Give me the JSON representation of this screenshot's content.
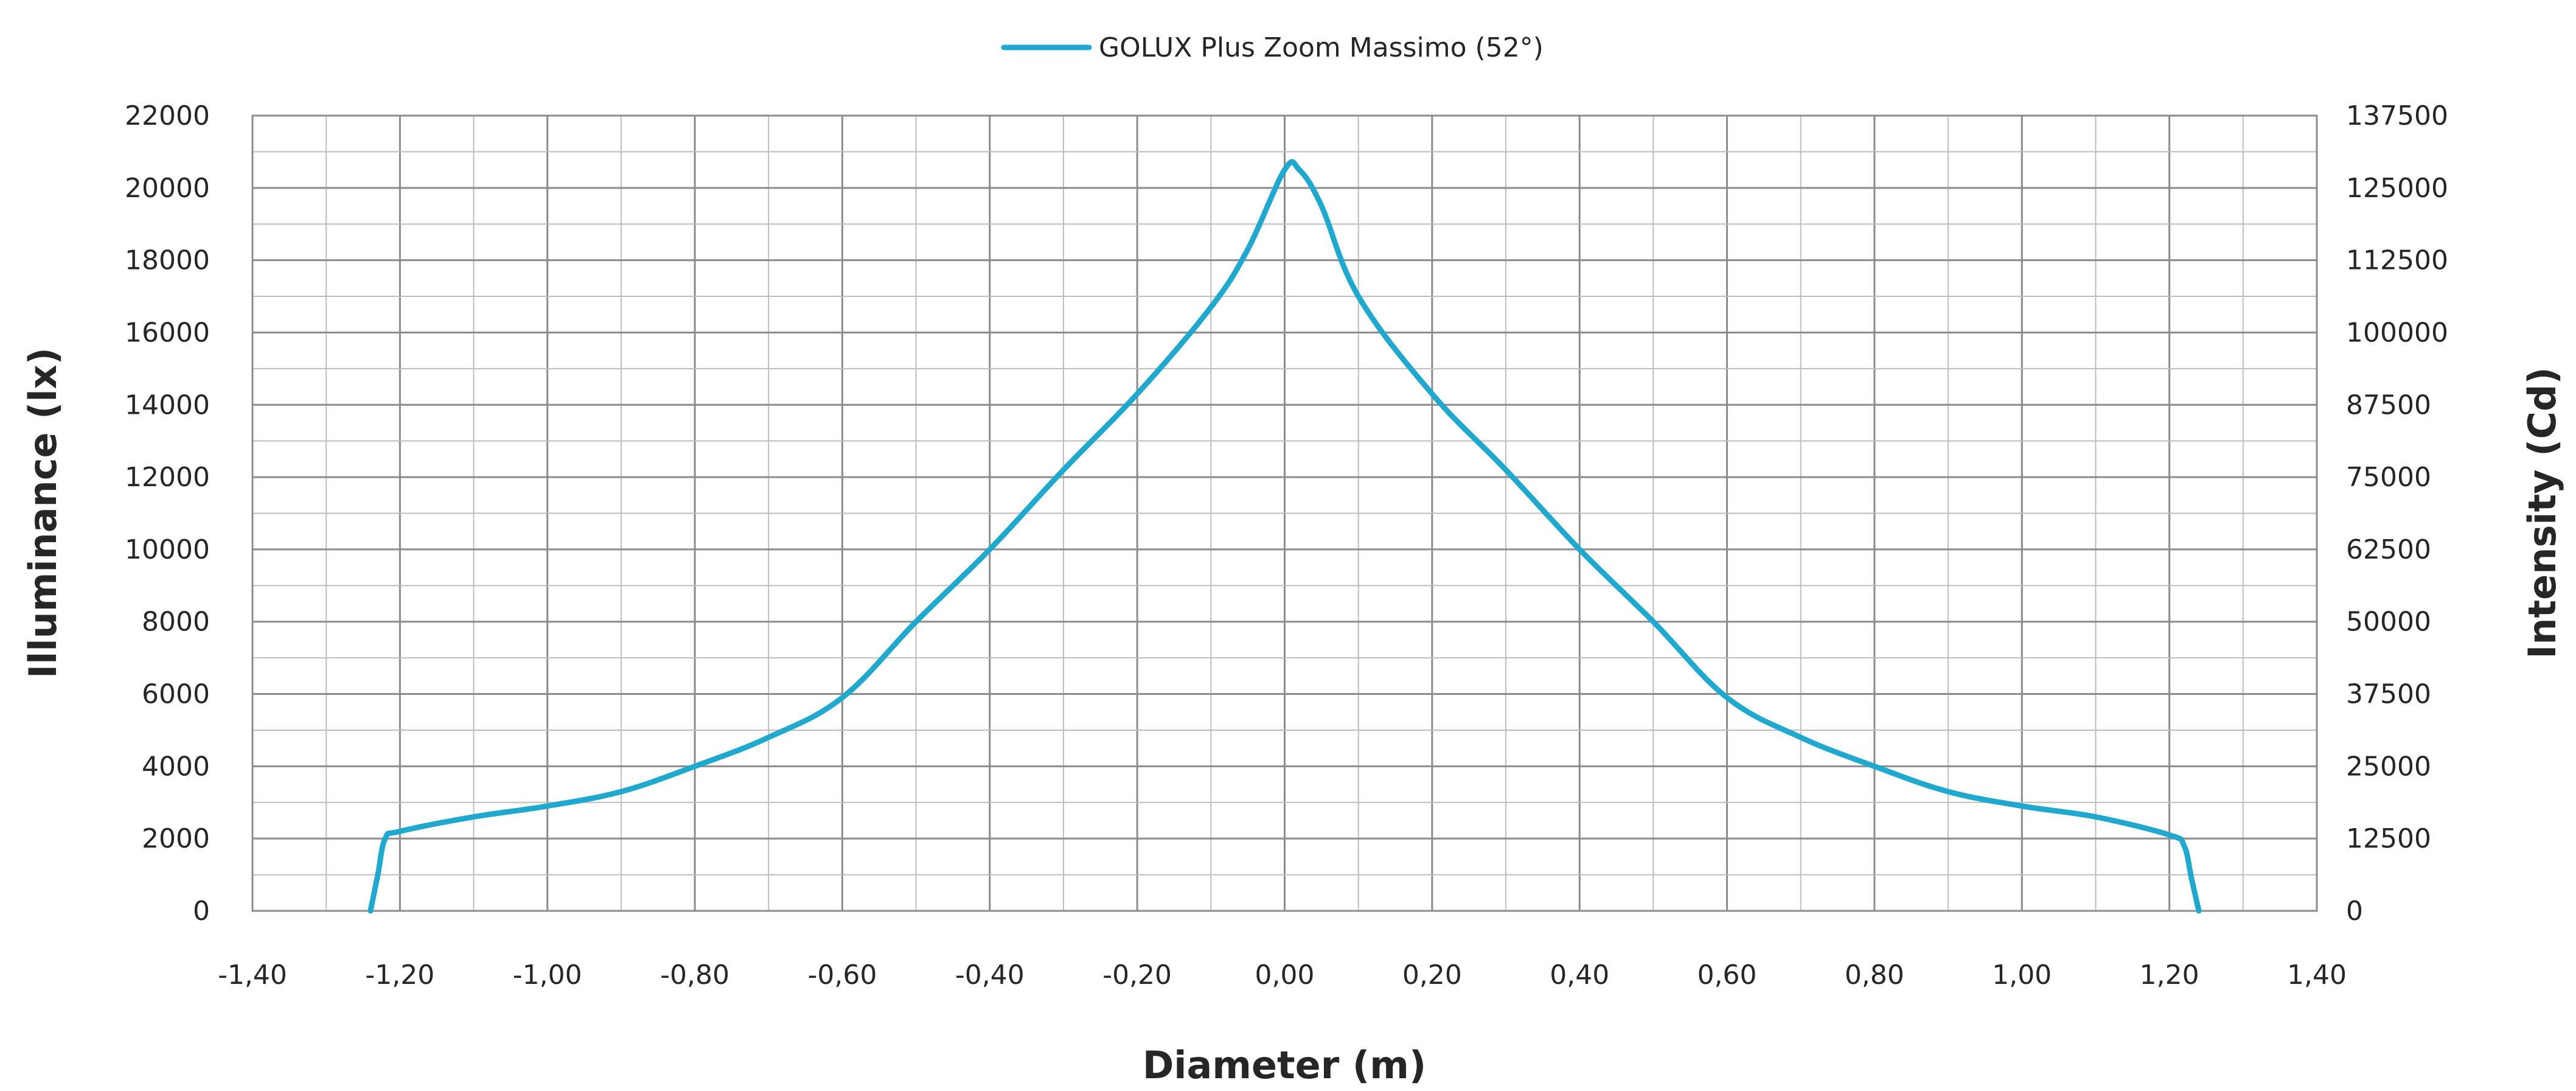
{
  "chart_data": {
    "type": "line",
    "xlabel": "Diameter (m)",
    "ylabel_left": "Illuminance  (lx)",
    "ylabel_right": "Intensity  (Cd)",
    "xlim": [
      -1.4,
      1.4
    ],
    "ylim_left": [
      0,
      22000
    ],
    "ylim_right": [
      0,
      137500
    ],
    "x_ticks": [
      "-1,40",
      "-1,20",
      "-1,00",
      "-0,80",
      "-0,60",
      "-0,40",
      "-0,20",
      "0,00",
      "0,20",
      "0,40",
      "0,60",
      "0,80",
      "1,00",
      "1,20",
      "1,40"
    ],
    "x_tick_values": [
      -1.4,
      -1.2,
      -1.0,
      -0.8,
      -0.6,
      -0.4,
      -0.2,
      0.0,
      0.2,
      0.4,
      0.6,
      0.8,
      1.0,
      1.2,
      1.4
    ],
    "y_left_ticks": [
      "0",
      "2000",
      "4000",
      "6000",
      "8000",
      "10000",
      "12000",
      "14000",
      "16000",
      "18000",
      "20000",
      "22000"
    ],
    "y_left_tick_values": [
      0,
      2000,
      4000,
      6000,
      8000,
      10000,
      12000,
      14000,
      16000,
      18000,
      20000,
      22000
    ],
    "y_right_ticks": [
      "0",
      "12500",
      "25000",
      "37500",
      "50000",
      "62500",
      "75000",
      "87500",
      "100000",
      "112500",
      "125000",
      "137500"
    ],
    "grid": true,
    "legend_position": "top-center",
    "series": [
      {
        "name": "GOLUX Plus Zoom Massimo (52°)",
        "color": "#21a8cf",
        "x": [
          -1.24,
          -1.23,
          -1.22,
          -1.2,
          -1.1,
          -1.0,
          -0.9,
          -0.8,
          -0.7,
          -0.6,
          -0.5,
          -0.4,
          -0.3,
          -0.2,
          -0.1,
          -0.05,
          0.0,
          0.02,
          0.05,
          0.1,
          0.2,
          0.3,
          0.4,
          0.5,
          0.6,
          0.7,
          0.8,
          0.9,
          1.0,
          1.1,
          1.2,
          1.22,
          1.23,
          1.24
        ],
        "y": [
          0,
          1000,
          2000,
          2200,
          2600,
          2900,
          3300,
          4000,
          4800,
          5900,
          8000,
          10000,
          12200,
          14300,
          16700,
          18300,
          20500,
          20500,
          19500,
          17000,
          14300,
          12200,
          10000,
          8000,
          5900,
          4800,
          4000,
          3300,
          2900,
          2600,
          2100,
          1800,
          900,
          0
        ]
      }
    ]
  }
}
